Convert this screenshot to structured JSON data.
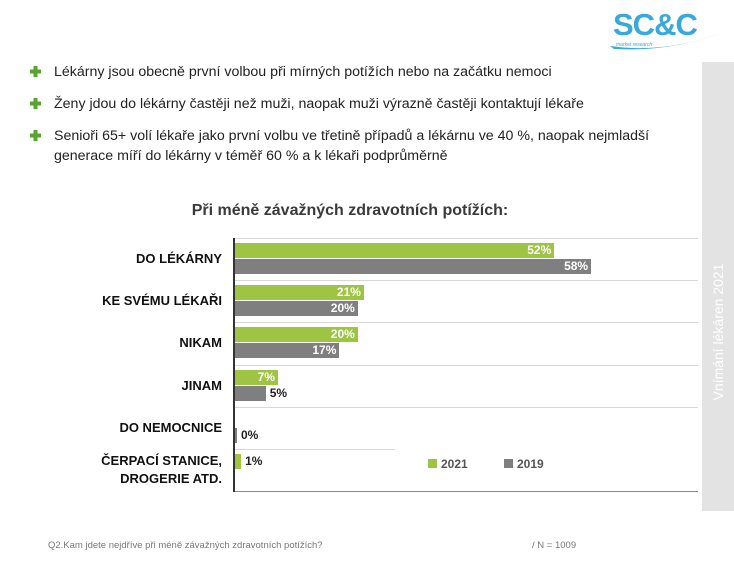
{
  "logo": {
    "text": "SC&C",
    "subtitle": "market research"
  },
  "bullets": [
    {
      "icon": "green-cross-icon",
      "text": "Lékárny jsou obecně první volbou při mírných potížích nebo na začátku nemoci"
    },
    {
      "icon": "green-cross-icon",
      "text": "Ženy jdou do lékárny častěji než muži, naopak muži výrazně častěji kontaktují lékaře"
    },
    {
      "icon": "green-cross-icon",
      "text": "Senioři 65+ volí lékaře jako první volbu ve třetině případů a lékárnu ve 40 %, naopak nejmladší generace míří do lékárny v téměř 60 % a k lékaři podprůměrně"
    }
  ],
  "sidebar": {
    "text": "Vnímání lékáren 2021"
  },
  "colors": {
    "series_2021": "#9dc443",
    "series_2019": "#7f7f7f",
    "logo": "#39a9dc",
    "sidebar": "#e3e3e3"
  },
  "chart_data": {
    "type": "bar",
    "orientation": "horizontal",
    "title": "Při méně závažných zdravotních potížích:",
    "categories": [
      "DO LÉKÁRNY",
      "KE SVÉMU LÉKAŘI",
      "NIKAM",
      "JINAM",
      "DO NEMOCNICE",
      "ČERPACÍ STANICE, DROGERIE ATD."
    ],
    "series": [
      {
        "name": "2021",
        "values": [
          52,
          21,
          20,
          7,
          null,
          1
        ],
        "labels": [
          "52%",
          "21%",
          "20%",
          "7%",
          "",
          "1%"
        ]
      },
      {
        "name": "2019",
        "values": [
          58,
          20,
          17,
          5,
          0,
          null
        ],
        "labels": [
          "58%",
          "20%",
          "17%",
          "5%",
          "0%",
          ""
        ]
      }
    ],
    "unit": "%",
    "xlim": [
      0,
      75
    ],
    "legend": [
      "2021",
      "2019"
    ],
    "legend_position": "bottom-right",
    "grid": true
  },
  "footer": {
    "question": "Q2.Kam jdete nejdříve při méně závažných zdravotních potížích?",
    "n_label": "/ N =  1009"
  }
}
